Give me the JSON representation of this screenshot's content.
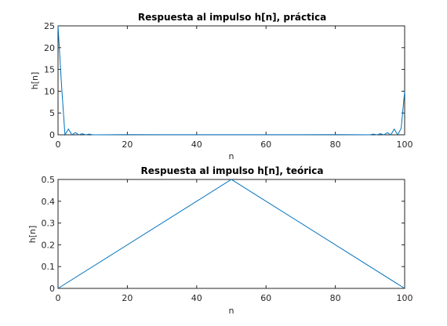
{
  "chart_data": [
    {
      "type": "line",
      "title": "Respuesta al impulso h[n], práctica",
      "xlabel": "n",
      "ylabel": "h[n]",
      "xlim": [
        0,
        100
      ],
      "ylim": [
        0,
        25
      ],
      "xticks": [
        0,
        20,
        40,
        60,
        80,
        100
      ],
      "yticks": [
        0,
        5,
        10,
        15,
        20,
        25
      ],
      "color": "#0072BD",
      "series": [
        {
          "x": [
            0,
            1,
            2,
            3,
            4,
            5,
            6,
            7,
            8,
            9,
            10,
            20,
            30,
            40,
            50,
            60,
            70,
            80,
            90,
            91,
            92,
            93,
            94,
            95,
            96,
            97,
            98,
            99,
            100
          ],
          "y": [
            25,
            11.5,
            0,
            1.3,
            0,
            0.5,
            0,
            0.25,
            0,
            0.15,
            0,
            0.05,
            0.03,
            0.03,
            0.02,
            0.03,
            0.03,
            0.05,
            0,
            0.15,
            0,
            0.25,
            0,
            0.5,
            0,
            1.3,
            0,
            1.5,
            10
          ]
        }
      ]
    },
    {
      "type": "line",
      "title": "Respuesta al impulso h[n], teórica",
      "xlabel": "n",
      "ylabel": "h[n]",
      "xlim": [
        0,
        100
      ],
      "ylim": [
        0,
        0.5
      ],
      "xticks": [
        0,
        20,
        40,
        60,
        80,
        100
      ],
      "yticks": [
        0,
        0.1,
        0.2,
        0.3,
        0.4,
        0.5
      ],
      "color": "#0072BD",
      "series": [
        {
          "x": [
            0,
            50,
            100
          ],
          "y": [
            0,
            0.5,
            0
          ]
        }
      ]
    }
  ]
}
